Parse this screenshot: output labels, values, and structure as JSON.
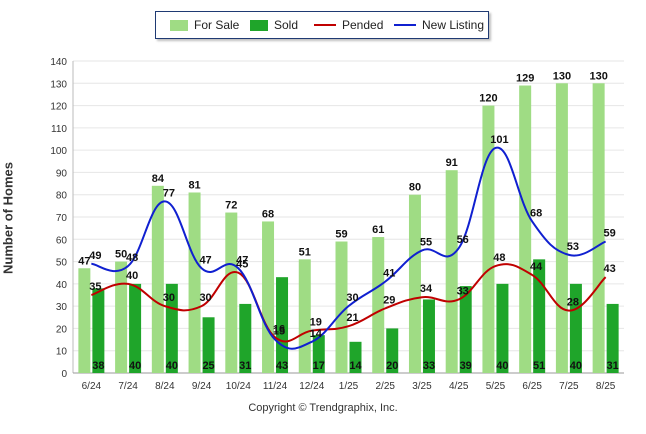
{
  "chart_data": {
    "type": "bar",
    "categories": [
      "6/24",
      "7/24",
      "8/24",
      "9/24",
      "10/24",
      "11/24",
      "12/24",
      "1/25",
      "2/25",
      "3/25",
      "4/25",
      "5/25",
      "6/25",
      "7/25",
      "8/25"
    ],
    "series": [
      {
        "name": "For Sale",
        "kind": "bar",
        "color": "#9fdc84",
        "values": [
          47,
          50,
          84,
          81,
          72,
          68,
          51,
          59,
          61,
          80,
          91,
          120,
          129,
          130,
          130
        ]
      },
      {
        "name": "Sold",
        "kind": "bar",
        "color": "#1fa52a",
        "values": [
          38,
          40,
          40,
          25,
          31,
          43,
          17,
          14,
          20,
          33,
          39,
          40,
          51,
          40,
          31
        ]
      },
      {
        "name": "Pended",
        "kind": "line",
        "color": "#c00000",
        "values": [
          35,
          40,
          30,
          30,
          45,
          16,
          19,
          21,
          29,
          34,
          33,
          48,
          44,
          28,
          43
        ]
      },
      {
        "name": "New Listing",
        "kind": "line",
        "color": "#1020d0",
        "values": [
          49,
          48,
          77,
          47,
          47,
          15,
          14,
          30,
          41,
          55,
          56,
          101,
          68,
          53,
          59
        ]
      }
    ],
    "ylabel": "Number of Homes",
    "xlabel": "",
    "ylim": [
      0,
      140
    ],
    "yticks": [
      0,
      10,
      20,
      30,
      40,
      50,
      60,
      70,
      80,
      90,
      100,
      110,
      120,
      130,
      140
    ],
    "grid": true,
    "legend_position": "top-center"
  },
  "legend": {
    "for_sale": "For Sale",
    "sold": "Sold",
    "pended": "Pended",
    "new_listing": "New Listing"
  },
  "footer": {
    "copyright": "Copyright © Trendgraphix, Inc."
  }
}
